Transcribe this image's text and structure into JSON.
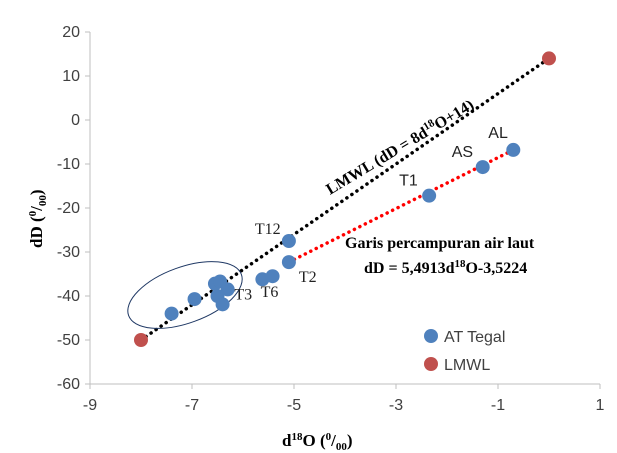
{
  "chart_data": {
    "type": "scatter",
    "xlim": [
      -9,
      1
    ],
    "ylim": [
      -60,
      20
    ],
    "x_ticks": [
      -9,
      -7,
      -5,
      -3,
      -1,
      1
    ],
    "x_tick_labels": [
      "-9",
      "-7",
      "-5",
      "-3",
      "-1",
      "1"
    ],
    "y_ticks": [
      -60,
      -50,
      -40,
      -30,
      -20,
      -10,
      0,
      10,
      20
    ],
    "y_tick_labels": [
      "-60",
      "-50",
      "-40",
      "-30",
      "-20",
      "-10",
      "0",
      "10",
      "20"
    ],
    "grid": false,
    "legend_position": "bottom-right",
    "xlabel": {
      "main": "d",
      "sup": "18",
      "tail": "O (",
      "unit_sup": "0",
      "slash": "/",
      "unit_sub": "00",
      "close": ")"
    },
    "ylabel": {
      "main": "dD (",
      "unit_sup": "0",
      "slash": "/",
      "unit_sub": "00",
      "close": ")"
    },
    "series": [
      {
        "name": "AT Tegal",
        "color": "#4f81bd",
        "points": [
          {
            "x": -7.4,
            "y": -44.0,
            "label": ""
          },
          {
            "x": -6.95,
            "y": -40.7,
            "label": ""
          },
          {
            "x": -6.55,
            "y": -37.2,
            "label": ""
          },
          {
            "x": -6.45,
            "y": -36.7,
            "label": ""
          },
          {
            "x": -6.3,
            "y": -38.5,
            "label": ""
          },
          {
            "x": -6.5,
            "y": -40.0,
            "label": ""
          },
          {
            "x": -6.4,
            "y": -41.9,
            "label": ""
          },
          {
            "x": -5.62,
            "y": -36.2,
            "label": "T3"
          },
          {
            "x": -5.42,
            "y": -35.5,
            "label": "T6"
          },
          {
            "x": -5.1,
            "y": -32.3,
            "label": "T2"
          },
          {
            "x": -5.1,
            "y": -27.5,
            "label": "T12"
          },
          {
            "x": -2.35,
            "y": -17.2,
            "label": "T1"
          },
          {
            "x": -1.3,
            "y": -10.7,
            "label": "AS"
          },
          {
            "x": -0.7,
            "y": -6.8,
            "label": "AL"
          }
        ]
      },
      {
        "name": "LMWL",
        "color": "#c0504d",
        "points": [
          {
            "x": -8.0,
            "y": -50.0,
            "label": ""
          },
          {
            "x": 0.0,
            "y": 14.0,
            "label": ""
          }
        ]
      }
    ],
    "lines": [
      {
        "name": "lmwl-line",
        "color": "#000000",
        "from": [
          -8.0,
          -50.0
        ],
        "to": [
          0.0,
          14.0
        ]
      },
      {
        "name": "mixing-line",
        "color": "#ff0000",
        "from": [
          -5.1,
          -32.3
        ],
        "to": [
          -0.7,
          -6.8
        ]
      }
    ],
    "annotations": {
      "lmwl_eq": {
        "pre": "LMWL (dD = 8d",
        "sup": "18",
        "post": "O+14)"
      },
      "mixing_title": "Garis percampuran air laut",
      "mixing_eq": {
        "pre": "dD = 5,4913d",
        "sup": "18",
        "post": "O-3,5224"
      }
    }
  }
}
